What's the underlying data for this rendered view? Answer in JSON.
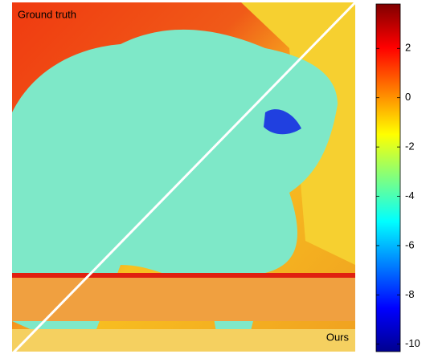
{
  "figure": {
    "labels": {
      "top_left": "Ground truth",
      "bottom_right": "Ours"
    },
    "colorbar": {
      "lim": [
        -10.3,
        3.8
      ],
      "ticks": [
        2,
        0,
        -2,
        -4,
        -6,
        -8,
        -10
      ],
      "colormap": "jet"
    }
  }
}
